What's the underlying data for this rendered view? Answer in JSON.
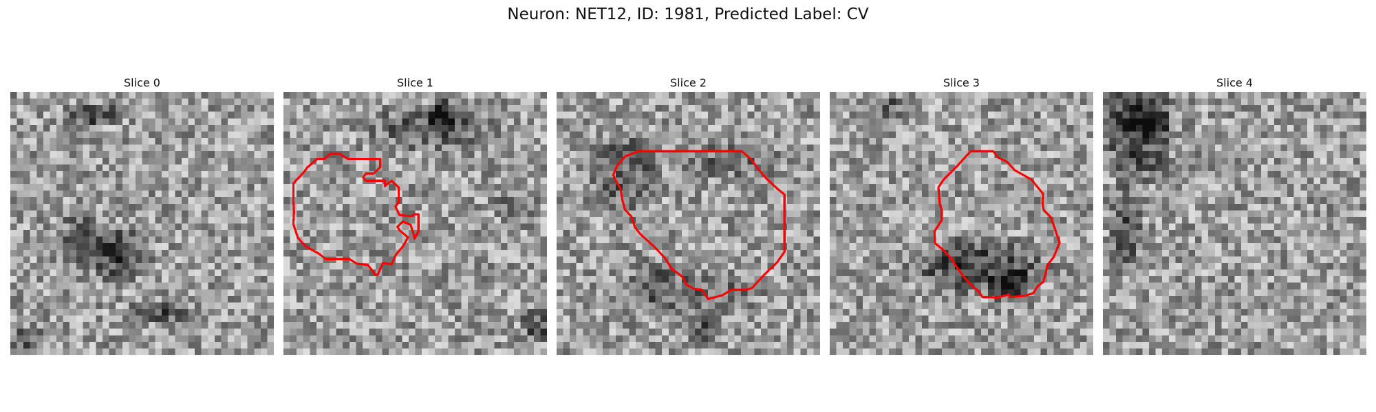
{
  "figure": {
    "title": "Neuron: NET12, ID: 1981, Predicted Label: CV"
  },
  "colors": {
    "contour": "#ff0000",
    "background": "#ffffff"
  },
  "slices": [
    {
      "title": "Slice 0",
      "has_contour": false
    },
    {
      "title": "Slice 1",
      "has_contour": true
    },
    {
      "title": "Slice 2",
      "has_contour": true
    },
    {
      "title": "Slice 3",
      "has_contour": true
    },
    {
      "title": "Slice 4",
      "has_contour": false
    }
  ]
}
